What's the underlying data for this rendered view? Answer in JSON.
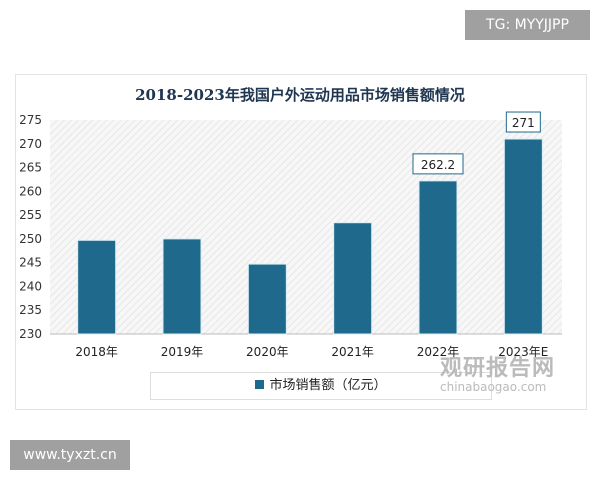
{
  "badges": {
    "tg": "TG: MYYJJPP",
    "site": "www.tyxzt.cn"
  },
  "watermark": {
    "cn": "观研报告网",
    "en": "chinabaogao.com"
  },
  "colors": {
    "bar": "#1f6a8c",
    "title": "#1f3550"
  },
  "chart_data": {
    "type": "bar",
    "title": "2018-2023年我国户外运动用品市场销售额情况",
    "categories": [
      "2018年",
      "2019年",
      "2020年",
      "2021年",
      "2022年",
      "2023年E"
    ],
    "series": [
      {
        "name": "市场销售额（亿元）",
        "values": [
          249.7,
          250.0,
          244.7,
          253.4,
          262.2,
          271
        ]
      }
    ],
    "data_labels": [
      "",
      "",
      "",
      "",
      "262.2",
      "271"
    ],
    "ylim": [
      230,
      275
    ],
    "yticks": [
      230,
      235,
      240,
      245,
      250,
      255,
      260,
      265,
      270,
      275
    ],
    "grid": false,
    "legend": "bottom"
  }
}
